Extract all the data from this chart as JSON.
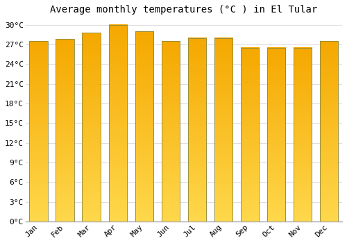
{
  "title": "Average monthly temperatures (°C ) in El Tular",
  "months": [
    "Jan",
    "Feb",
    "Mar",
    "Apr",
    "May",
    "Jun",
    "Jul",
    "Aug",
    "Sep",
    "Oct",
    "Nov",
    "Dec"
  ],
  "temperatures": [
    27.5,
    27.8,
    28.8,
    30.0,
    29.0,
    27.5,
    28.0,
    28.0,
    26.5,
    26.5,
    26.5,
    27.5
  ],
  "color_top": "#F5A800",
  "color_bottom": "#FFD84C",
  "bar_edge_color": "#888844",
  "ylim": [
    0,
    31
  ],
  "yticks": [
    0,
    3,
    6,
    9,
    12,
    15,
    18,
    21,
    24,
    27,
    30
  ],
  "ytick_labels": [
    "0°C",
    "3°C",
    "6°C",
    "9°C",
    "12°C",
    "15°C",
    "18°C",
    "21°C",
    "24°C",
    "27°C",
    "30°C"
  ],
  "background_color": "#ffffff",
  "grid_color": "#dddddd",
  "title_fontsize": 10,
  "tick_fontsize": 8,
  "bar_width": 0.7
}
